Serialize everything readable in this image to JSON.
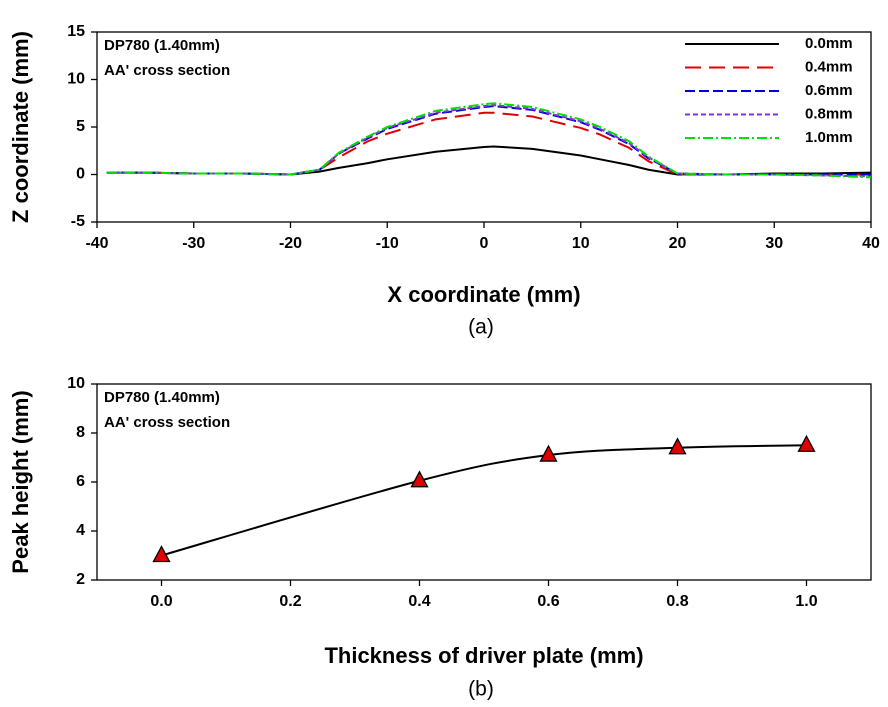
{
  "chart_data": [
    {
      "type": "line",
      "xlabel": "X coordinate (mm)",
      "ylabel": "Z coordinate (mm)",
      "caption": "(a)",
      "annotations": [
        "DP780 (1.40mm)",
        "AA' cross section"
      ],
      "xlim": [
        -40,
        40
      ],
      "ylim": [
        -5,
        15
      ],
      "xticks": [
        -40,
        -30,
        -20,
        -10,
        0,
        10,
        20,
        30,
        40
      ],
      "yticks": [
        -5,
        0,
        5,
        10,
        15
      ],
      "legend": "upper right",
      "x": [
        -39,
        -35,
        -30,
        -25,
        -20,
        -17,
        -15,
        -12,
        -10,
        -5,
        0,
        1,
        5,
        10,
        12,
        15,
        17,
        20,
        25,
        30,
        35,
        40
      ],
      "series": [
        {
          "name": "0.0mm",
          "color": "#000000",
          "dash": "solid",
          "values": [
            0.2,
            0.2,
            0.1,
            0.1,
            0,
            0.3,
            0.7,
            1.2,
            1.6,
            2.4,
            2.9,
            2.95,
            2.7,
            2.0,
            1.6,
            1.0,
            0.5,
            0,
            0,
            0.1,
            0.1,
            0.2
          ]
        },
        {
          "name": "0.4mm",
          "color": "#e00000",
          "dash": "long",
          "values": [
            0.2,
            0.2,
            0.1,
            0.1,
            0,
            0.5,
            1.8,
            3.5,
            4.3,
            5.8,
            6.5,
            6.5,
            6.1,
            4.9,
            4.2,
            2.8,
            1.4,
            0,
            0,
            0,
            0,
            0
          ]
        },
        {
          "name": "0.6mm",
          "color": "#0000dd",
          "dash": "medium",
          "values": [
            0.2,
            0.2,
            0.1,
            0.1,
            0,
            0.5,
            2.2,
            3.8,
            4.8,
            6.4,
            7.1,
            7.2,
            6.8,
            5.5,
            4.7,
            3.2,
            1.7,
            0.1,
            0,
            0,
            0,
            0
          ]
        },
        {
          "name": "0.8mm",
          "color": "#8a2be2",
          "dash": "short",
          "values": [
            0.2,
            0.2,
            0.1,
            0.1,
            0,
            0.5,
            2.2,
            3.9,
            4.9,
            6.5,
            7.2,
            7.3,
            6.9,
            5.6,
            4.8,
            3.3,
            1.8,
            0.1,
            0,
            0,
            -0.1,
            -0.2
          ]
        },
        {
          "name": "1.0mm",
          "color": "#00e000",
          "dash": "dashdot",
          "values": [
            0.2,
            0.2,
            0.1,
            0.1,
            0,
            0.5,
            2.3,
            4.0,
            5.0,
            6.7,
            7.4,
            7.5,
            7.1,
            5.8,
            5.0,
            3.5,
            1.9,
            0.1,
            0,
            0,
            -0.1,
            -0.3
          ]
        }
      ]
    },
    {
      "type": "line",
      "xlabel": "Thickness of driver plate (mm)",
      "ylabel": "Peak height (mm)",
      "caption": "(b)",
      "annotations": [
        "DP780 (1.40mm)",
        "AA' cross section"
      ],
      "xlim": [
        -0.1,
        1.1
      ],
      "ylim": [
        2,
        10
      ],
      "xticks": [
        {
          "value": 0,
          "label": "0.0"
        },
        0.2,
        0.4,
        0.6,
        0.8,
        {
          "value": 1,
          "label": "1.0"
        }
      ],
      "yticks": [
        2,
        4,
        6,
        8,
        10
      ],
      "smooth": true,
      "x": [
        0,
        0.4,
        0.6,
        0.8,
        1.0
      ],
      "series": [
        {
          "color": "#000000",
          "dash": "solid",
          "marker": "triangle",
          "marker_color": "#e00000",
          "values": [
            3.0,
            6.05,
            7.1,
            7.4,
            7.5
          ]
        }
      ]
    }
  ]
}
